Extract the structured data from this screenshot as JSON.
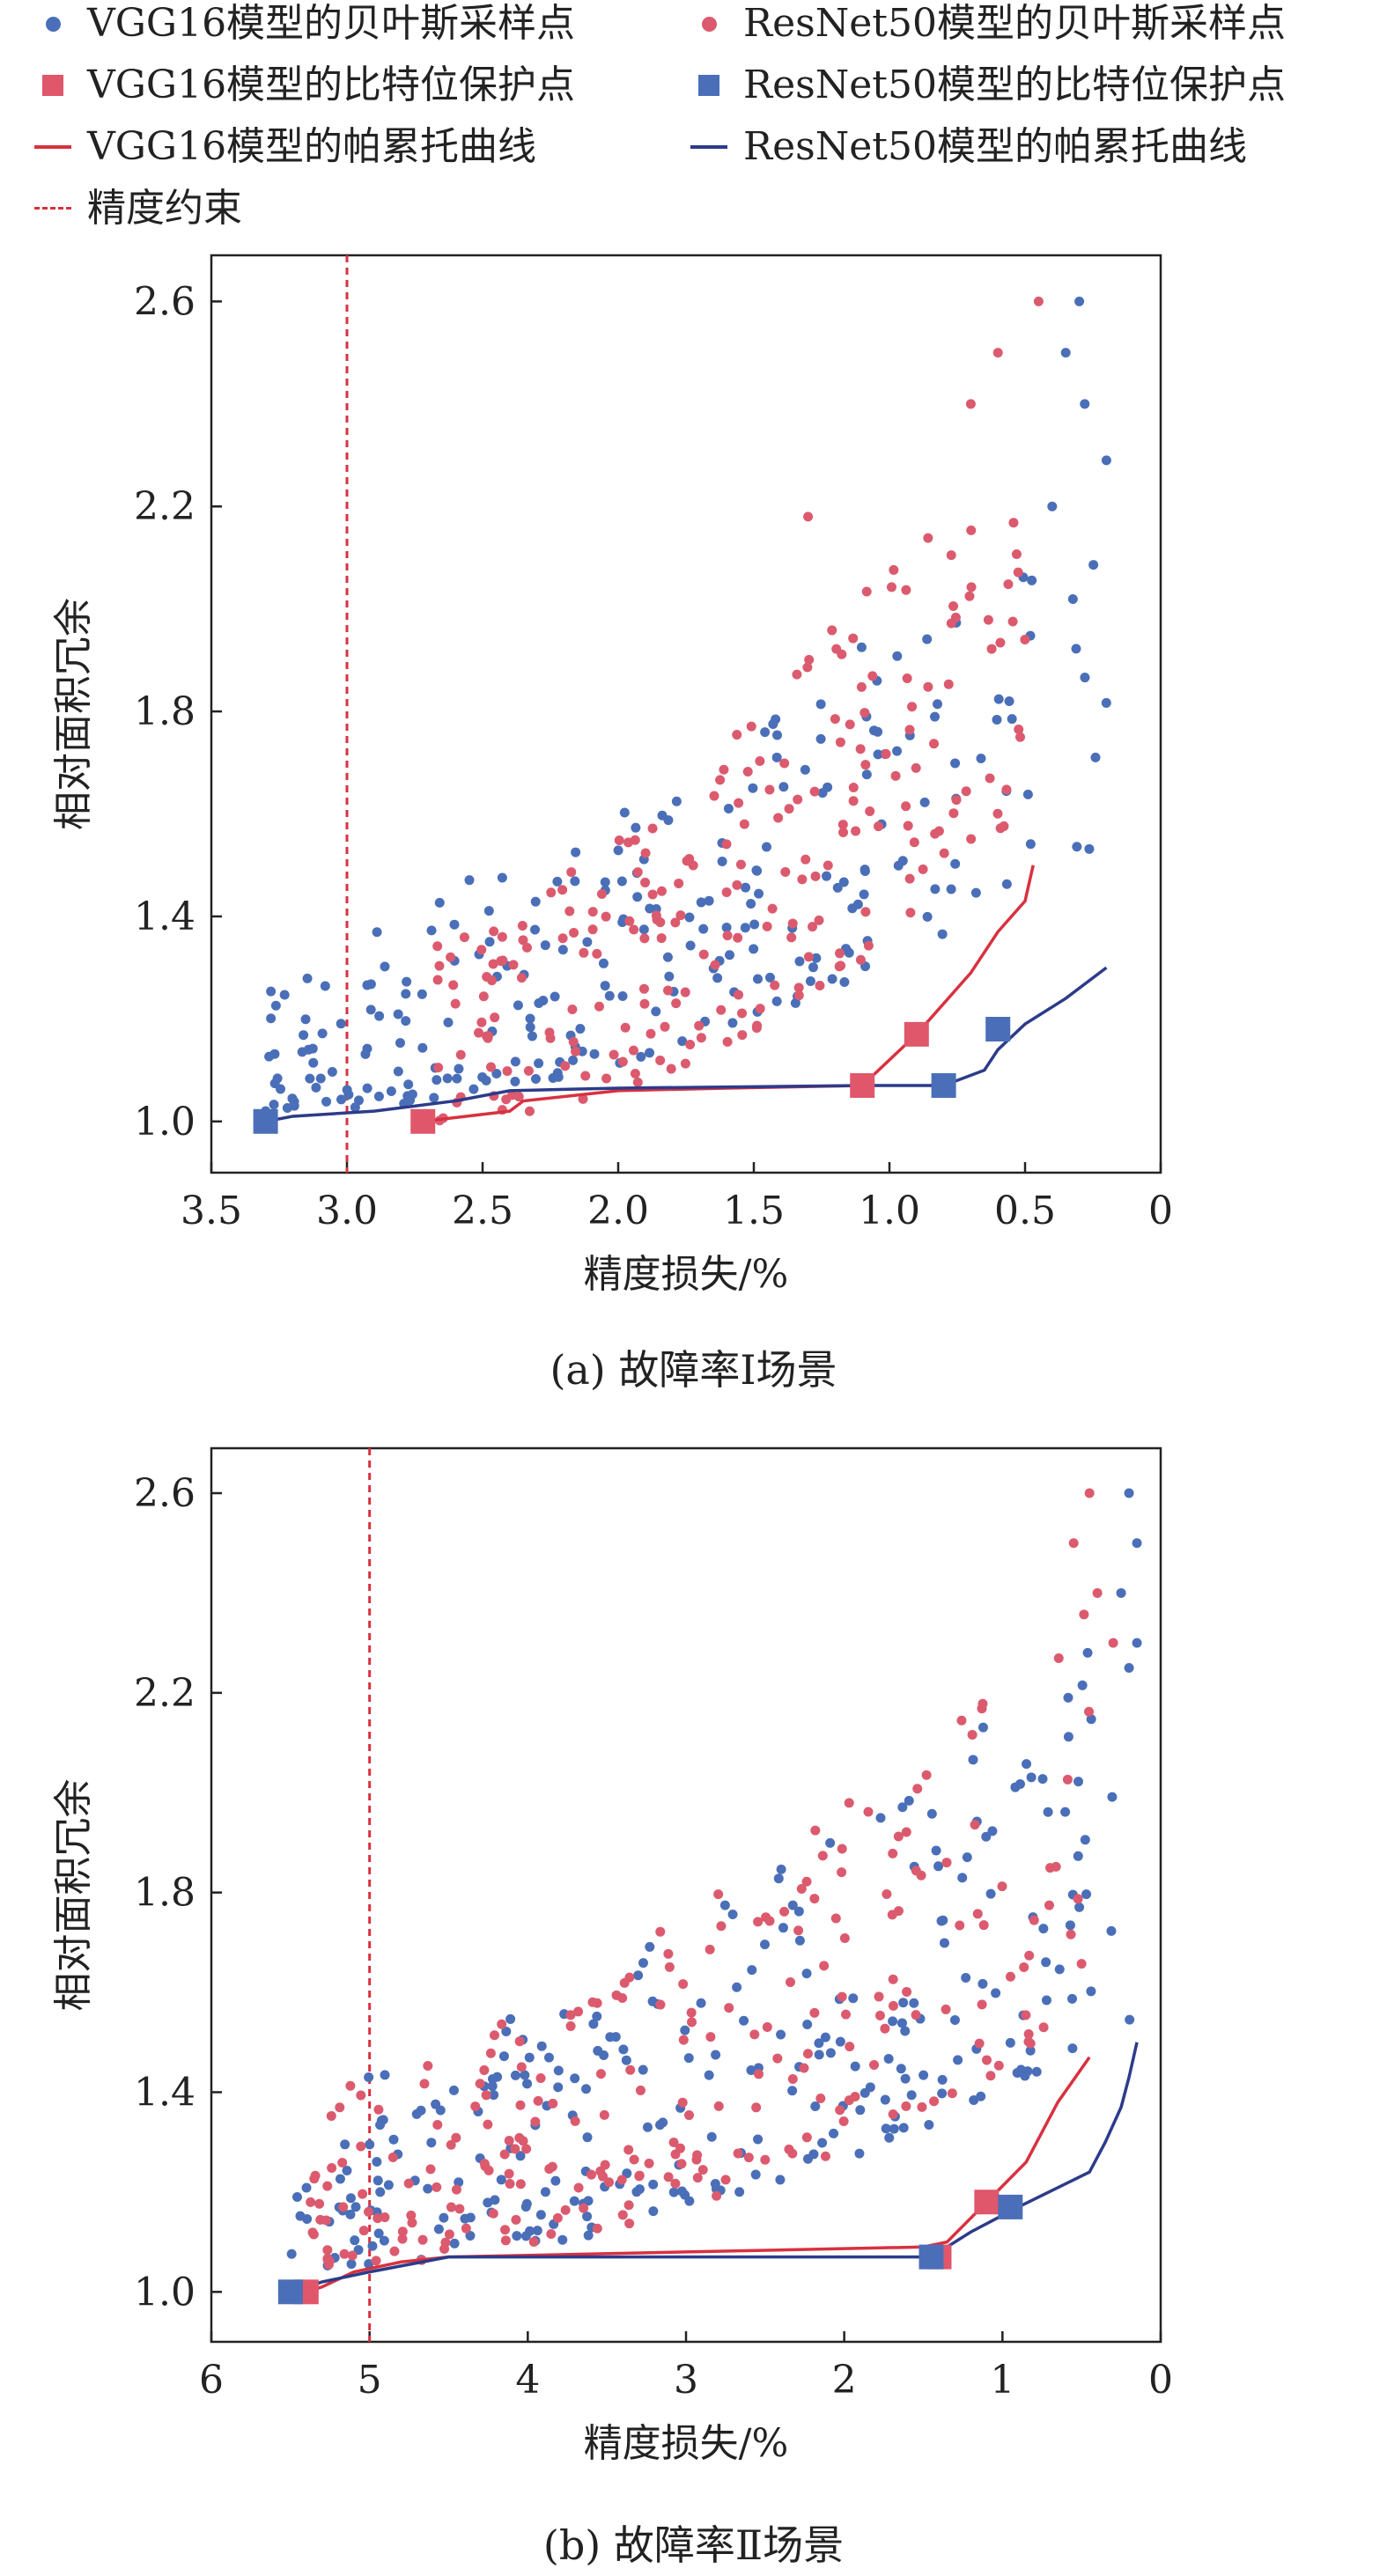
{
  "legend": {
    "items": [
      {
        "label": "VGG16模型的贝叶斯采样点",
        "symbol": "circle",
        "color": "#4a6fb8"
      },
      {
        "label": "ResNet50模型的贝叶斯采样点",
        "symbol": "circle",
        "color": "#dc5a6e"
      },
      {
        "label": "VGG16模型的比特位保护点",
        "symbol": "square",
        "color": "#e0566b"
      },
      {
        "label": "ResNet50模型的比特位保护点",
        "symbol": "square",
        "color": "#4a6fb8"
      },
      {
        "label": "VGG16模型的帕累托曲线",
        "symbol": "line",
        "color": "#d8313f"
      },
      {
        "label": "ResNet50模型的帕累托曲线",
        "symbol": "line",
        "color": "#2c3b8a"
      },
      {
        "label": "精度约束",
        "symbol": "dash",
        "color": "#d8313f"
      }
    ]
  },
  "colors": {
    "vgg_sample": "#4a6fb8",
    "resnet_sample": "#dc5a6e",
    "vgg_pareto": "#d8313f",
    "resnet_pareto": "#2c3b8a",
    "constraint": "#d8313f"
  },
  "chart_data": [
    {
      "type": "scatter",
      "caption": "(a)  故障率Ⅰ场景",
      "xlabel": "精度损失/%",
      "ylabel": "相对面积冗余",
      "xlim": [
        3.5,
        0
      ],
      "ylim": [
        0.9,
        2.69
      ],
      "x_reversed": true,
      "xticks": [
        3.5,
        3.0,
        2.5,
        2.0,
        1.5,
        1.0,
        0.5,
        0
      ],
      "xtick_labels": [
        "3.5",
        "3.0",
        "2.5",
        "2.0",
        "1.5",
        "1.0",
        "0.5",
        "0"
      ],
      "yticks": [
        1.0,
        1.4,
        1.8,
        2.2,
        2.6
      ],
      "ytick_labels": [
        "1.0",
        "1.4",
        "1.8",
        "2.2",
        "2.6"
      ],
      "accuracy_constraint_x": 3.0,
      "vgg16_pareto": {
        "x": [
          2.72,
          2.4,
          2.35,
          2.0,
          1.6,
          1.1,
          0.9,
          0.7,
          0.6,
          0.5,
          0.47
        ],
        "y": [
          1.0,
          1.02,
          1.04,
          1.06,
          1.065,
          1.07,
          1.17,
          1.29,
          1.37,
          1.43,
          1.5
        ]
      },
      "resnet50_pareto": {
        "x": [
          3.3,
          3.2,
          2.9,
          2.6,
          2.4,
          2.0,
          1.1,
          0.8,
          0.65,
          0.6,
          0.5,
          0.35,
          0.2
        ],
        "y": [
          1.0,
          1.01,
          1.02,
          1.04,
          1.06,
          1.065,
          1.07,
          1.07,
          1.1,
          1.14,
          1.19,
          1.24,
          1.3
        ]
      },
      "vgg16_protection_points": {
        "x": [
          2.72,
          1.1,
          0.9
        ],
        "y": [
          1.0,
          1.07,
          1.17
        ]
      },
      "resnet50_protection_points": {
        "x": [
          3.3,
          0.8,
          0.6
        ],
        "y": [
          1.0,
          1.07,
          1.18
        ]
      },
      "vgg16_samples": {
        "x_range": [
          0.5,
          2.7
        ],
        "y_base": [
          1.0,
          1.6
        ],
        "y_spread": 0.85,
        "count": 230,
        "highlights": {
          "x": [
            0.45,
            0.6,
            0.7,
            1.3
          ],
          "y": [
            2.6,
            2.5,
            2.4,
            2.18
          ]
        }
      },
      "resnet50_samples": {
        "x_range": [
          0.2,
          3.3
        ],
        "y_base": [
          1.02,
          1.55
        ],
        "y_spread": 0.78,
        "count": 250,
        "highlights": {
          "x": [
            0.3,
            0.35,
            0.28,
            0.2,
            0.4
          ],
          "y": [
            2.6,
            2.5,
            2.4,
            2.29,
            2.2
          ]
        }
      }
    },
    {
      "type": "scatter",
      "caption": "(b)  故障率Ⅱ场景",
      "xlabel": "精度损失/%",
      "ylabel": "相对面积冗余",
      "xlim": [
        6,
        0
      ],
      "ylim": [
        0.9,
        2.69
      ],
      "x_reversed": true,
      "xticks": [
        6,
        5,
        4,
        3,
        2,
        1,
        0
      ],
      "xtick_labels": [
        "6",
        "5",
        "4",
        "3",
        "2",
        "1",
        "0"
      ],
      "yticks": [
        1.0,
        1.4,
        1.8,
        2.2,
        2.6
      ],
      "ytick_labels": [
        "1.0",
        "1.4",
        "1.8",
        "2.2",
        "2.6"
      ],
      "accuracy_constraint_x": 5.0,
      "vgg16_pareto": {
        "x": [
          5.4,
          5.3,
          5.1,
          4.8,
          4.5,
          3.0,
          1.5,
          1.35,
          1.1,
          0.85,
          0.65,
          0.45
        ],
        "y": [
          1.0,
          1.01,
          1.04,
          1.06,
          1.07,
          1.08,
          1.09,
          1.1,
          1.18,
          1.26,
          1.38,
          1.47
        ]
      },
      "resnet50_pareto": {
        "x": [
          5.5,
          5.3,
          5.0,
          4.5,
          3.0,
          1.45,
          1.2,
          0.9,
          0.45,
          0.35,
          0.25,
          0.2,
          0.15
        ],
        "y": [
          1.0,
          1.02,
          1.04,
          1.07,
          1.07,
          1.07,
          1.12,
          1.17,
          1.24,
          1.3,
          1.37,
          1.43,
          1.5
        ]
      },
      "vgg16_protection_points": {
        "x": [
          5.4,
          1.4,
          1.1
        ],
        "y": [
          1.0,
          1.07,
          1.18
        ]
      },
      "resnet50_protection_points": {
        "x": [
          5.5,
          1.45,
          0.95
        ],
        "y": [
          1.0,
          1.07,
          1.17
        ]
      },
      "vgg16_samples": {
        "x_range": [
          0.45,
          5.4
        ],
        "y_base": [
          1.05,
          1.55
        ],
        "y_spread": 0.85,
        "count": 250,
        "highlights": {
          "x": [
            0.45,
            0.55,
            0.4,
            0.3
          ],
          "y": [
            2.6,
            2.5,
            2.4,
            2.3
          ]
        }
      },
      "resnet50_samples": {
        "x_range": [
          0.15,
          5.5
        ],
        "y_base": [
          1.05,
          1.55
        ],
        "y_spread": 0.85,
        "count": 270,
        "highlights": {
          "x": [
            0.2,
            0.15,
            0.25,
            0.15,
            0.2
          ],
          "y": [
            2.6,
            2.5,
            2.4,
            2.3,
            2.25
          ]
        }
      }
    }
  ]
}
